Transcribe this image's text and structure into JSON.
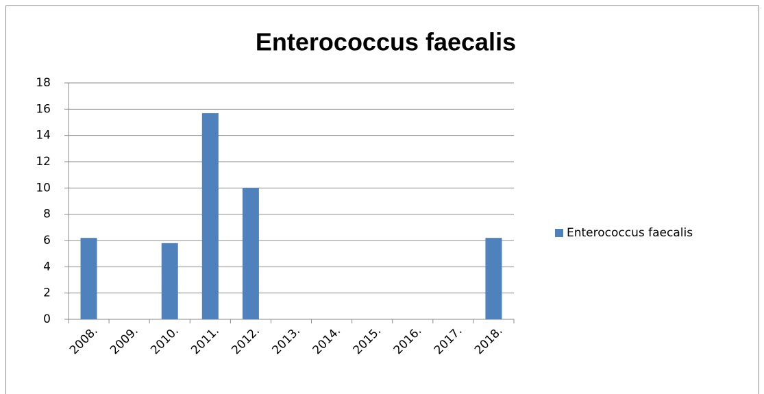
{
  "chart_data": {
    "type": "bar",
    "title": "Enterococcus faecalis",
    "categories": [
      "2008.",
      "2009.",
      "2010.",
      "2011.",
      "2012.",
      "2013.",
      "2014.",
      "2015.",
      "2016.",
      "2017.",
      "2018."
    ],
    "series": [
      {
        "name": "Enterococcus faecalis",
        "color": "#4f81bd",
        "values": [
          6.2,
          0,
          5.8,
          15.7,
          10,
          0,
          0,
          0,
          0,
          0,
          6.2
        ]
      }
    ],
    "ylim": [
      0,
      18
    ],
    "yticks": [
      0,
      2,
      4,
      6,
      8,
      10,
      12,
      14,
      16,
      18
    ],
    "grid": true,
    "legend": "right"
  }
}
